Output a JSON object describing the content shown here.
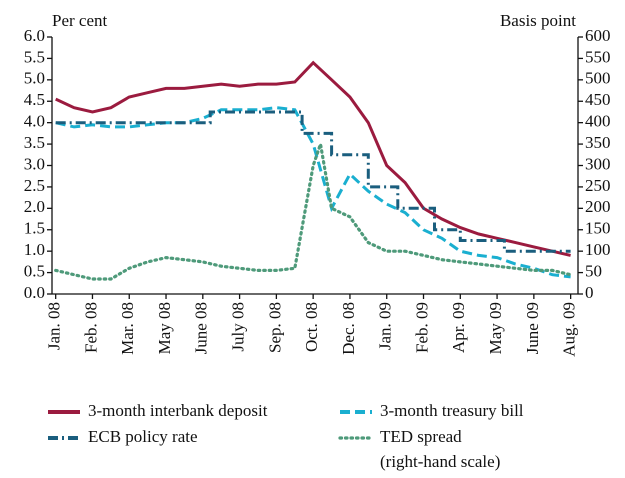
{
  "chart_data": {
    "type": "line",
    "y_label": "Per cent",
    "y2_label": "Basis point",
    "xlim": [
      -0.1,
      14.2
    ],
    "xticks": [
      {
        "value": 0,
        "label": "Jan. 08"
      },
      {
        "value": 1,
        "label": "Feb. 08"
      },
      {
        "value": 2,
        "label": "Mar. 08"
      },
      {
        "value": 3,
        "label": "May 08"
      },
      {
        "value": 4,
        "label": "June 08"
      },
      {
        "value": 5,
        "label": "July 08"
      },
      {
        "value": 6,
        "label": "Sep. 08"
      },
      {
        "value": 7,
        "label": "Oct. 08"
      },
      {
        "value": 8,
        "label": "Dec. 08"
      },
      {
        "value": 9,
        "label": "Jan. 09"
      },
      {
        "value": 10,
        "label": "Feb. 09"
      },
      {
        "value": 11,
        "label": "Apr. 09"
      },
      {
        "value": 12,
        "label": "May 09"
      },
      {
        "value": 13,
        "label": "June 09"
      },
      {
        "value": 14,
        "label": "Aug. 09"
      }
    ],
    "ylim": [
      0,
      6
    ],
    "yticks": [
      {
        "value": 0,
        "label": "0.0"
      },
      {
        "value": 0.5,
        "label": "0.5"
      },
      {
        "value": 1,
        "label": "1.0"
      },
      {
        "value": 1.5,
        "label": "1.5"
      },
      {
        "value": 2,
        "label": "2.0"
      },
      {
        "value": 2.5,
        "label": "2.5"
      },
      {
        "value": 3,
        "label": "3.0"
      },
      {
        "value": 3.5,
        "label": "3.5"
      },
      {
        "value": 4,
        "label": "4.0"
      },
      {
        "value": 4.5,
        "label": "4.5"
      },
      {
        "value": 5,
        "label": "5.0"
      },
      {
        "value": 5.5,
        "label": "5.5"
      },
      {
        "value": 6,
        "label": "6.0"
      }
    ],
    "y2lim": [
      0,
      600
    ],
    "y2ticks": [
      0,
      50,
      100,
      150,
      200,
      250,
      300,
      350,
      400,
      450,
      500,
      550,
      600
    ],
    "series": [
      {
        "name": "3-month interbank deposit",
        "color": "#9b1b3f",
        "style": "solid",
        "x": [
          0,
          0.5,
          1,
          1.5,
          2,
          2.5,
          3,
          3.5,
          4,
          4.5,
          5,
          5.5,
          6,
          6.5,
          7,
          7.5,
          8,
          8.5,
          9,
          9.5,
          10,
          10.5,
          11,
          11.5,
          12,
          12.5,
          13,
          13.5,
          14
        ],
        "values": [
          4.55,
          4.35,
          4.25,
          4.35,
          4.6,
          4.7,
          4.8,
          4.8,
          4.85,
          4.9,
          4.85,
          4.9,
          4.9,
          4.95,
          5.4,
          5.0,
          4.6,
          4.0,
          3.0,
          2.6,
          2.0,
          1.75,
          1.55,
          1.4,
          1.3,
          1.2,
          1.1,
          1.0,
          0.9
        ]
      },
      {
        "name": "3-month treasury bill",
        "color": "#1aafd0",
        "style": "dash",
        "x": [
          0,
          0.5,
          1,
          1.5,
          2,
          2.5,
          3,
          3.5,
          4,
          4.5,
          5,
          5.5,
          6,
          6.5,
          7,
          7.5,
          8,
          8.5,
          9,
          9.5,
          10,
          10.5,
          11,
          11.5,
          12,
          12.5,
          13,
          13.5,
          14
        ],
        "values": [
          4.0,
          3.9,
          3.95,
          3.9,
          3.9,
          3.95,
          4.0,
          4.0,
          4.1,
          4.3,
          4.3,
          4.3,
          4.35,
          4.3,
          3.5,
          2.0,
          2.8,
          2.4,
          2.1,
          1.9,
          1.5,
          1.3,
          1.0,
          0.9,
          0.85,
          0.7,
          0.6,
          0.45,
          0.4
        ]
      },
      {
        "name": "ECB policy rate",
        "color": "#1a5e7e",
        "style": "dashdot",
        "step": true,
        "x": [
          0,
          4.2,
          6.7,
          7.5,
          8.5,
          9.3,
          10.3,
          11,
          12.2,
          14
        ],
        "values": [
          4.0,
          4.25,
          3.75,
          3.25,
          2.5,
          2.0,
          1.5,
          1.25,
          1.0,
          1.0
        ]
      },
      {
        "name": "TED spread",
        "legend_note": "(right-hand scale)",
        "color": "#4e9a7a",
        "style": "dot",
        "axis": "y2",
        "x": [
          0,
          0.5,
          1,
          1.5,
          2,
          2.5,
          3,
          3.5,
          4,
          4.5,
          5,
          5.5,
          6,
          6.5,
          7,
          7.2,
          7.5,
          8,
          8.5,
          9,
          9.5,
          10,
          10.5,
          11,
          11.5,
          12,
          12.5,
          13,
          13.5,
          14
        ],
        "values": [
          55,
          45,
          35,
          35,
          60,
          75,
          85,
          80,
          75,
          65,
          60,
          55,
          55,
          60,
          300,
          350,
          200,
          180,
          120,
          100,
          100,
          90,
          80,
          75,
          70,
          65,
          60,
          55,
          55,
          45
        ]
      }
    ]
  }
}
